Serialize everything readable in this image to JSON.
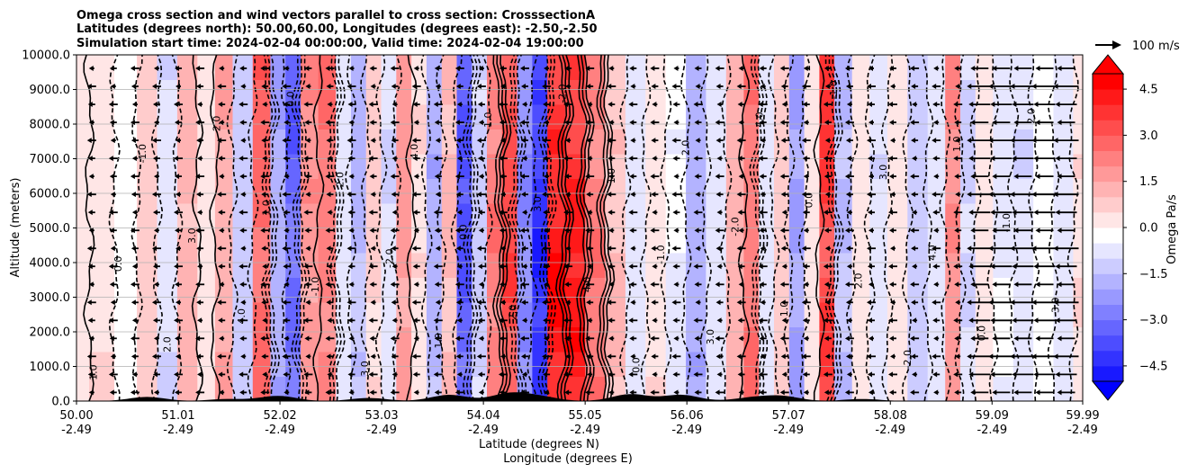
{
  "chart_data": {
    "type": "heatmap",
    "title_lines": [
      "Omega cross section and wind vectors parallel to cross section: CrosssectionA",
      "Latitudes (degrees north): 50.00,60.00, Longitudes (degrees east): -2.50,-2.50",
      "Simulation start time: 2024-02-04 00:00:00, Valid time: 2024-02-04 19:00:00"
    ],
    "ylabel": "Altitude (meters)",
    "xlabel_lat": "Latitude (degrees N)",
    "xlabel_lon": "Longitude (degrees E)",
    "ylim": [
      0,
      10000
    ],
    "y_ticks": [
      "0.0",
      "1000.0",
      "2000.0",
      "3000.0",
      "4000.0",
      "5000.0",
      "6000.0",
      "7000.0",
      "8000.0",
      "9000.0",
      "10000.0"
    ],
    "x_ticks": [
      {
        "lat": "50.00",
        "lon": "-2.49"
      },
      {
        "lat": "51.01",
        "lon": "-2.49"
      },
      {
        "lat": "52.02",
        "lon": "-2.49"
      },
      {
        "lat": "53.03",
        "lon": "-2.49"
      },
      {
        "lat": "54.04",
        "lon": "-2.49"
      },
      {
        "lat": "55.05",
        "lon": "-2.49"
      },
      {
        "lat": "56.06",
        "lon": "-2.49"
      },
      {
        "lat": "57.07",
        "lon": "-2.49"
      },
      {
        "lat": "58.08",
        "lon": "-2.49"
      },
      {
        "lat": "59.09",
        "lon": "-2.49"
      },
      {
        "lat": "59.99",
        "lon": "-2.49"
      }
    ],
    "xlim_lat": [
      50.0,
      59.99
    ],
    "grid": "horizontal",
    "colorbar": {
      "label": "Omega Pa/s",
      "min": -5.0,
      "max": 5.0,
      "ticks": [
        "4.5",
        "3.0",
        "1.5",
        "0.0",
        "−1.5",
        "−3.0",
        "−4.5"
      ],
      "tick_values": [
        4.5,
        3.0,
        1.5,
        0.0,
        -1.5,
        -3.0,
        -4.5
      ],
      "colors": {
        "negative": "#0000ff",
        "zero": "#ffffff",
        "positive": "#ff0000"
      }
    },
    "quiver_key": {
      "label": "100 m/s"
    },
    "omega_bands": [
      {
        "lat": 50.0,
        "omega": 0.5
      },
      {
        "lat": 50.25,
        "omega": 0.8
      },
      {
        "lat": 50.5,
        "omega": -0.2
      },
      {
        "lat": 50.7,
        "omega": 1.2
      },
      {
        "lat": 50.9,
        "omega": -0.8
      },
      {
        "lat": 51.1,
        "omega": 1.8
      },
      {
        "lat": 51.3,
        "omega": 0.4
      },
      {
        "lat": 51.45,
        "omega": 2.0
      },
      {
        "lat": 51.65,
        "omega": -1.2
      },
      {
        "lat": 51.85,
        "omega": 3.5
      },
      {
        "lat": 52.0,
        "omega": -2.0
      },
      {
        "lat": 52.15,
        "omega": -3.5
      },
      {
        "lat": 52.3,
        "omega": 2.5
      },
      {
        "lat": 52.5,
        "omega": 3.0
      },
      {
        "lat": 52.65,
        "omega": -0.5
      },
      {
        "lat": 52.8,
        "omega": -1.5
      },
      {
        "lat": 52.95,
        "omega": 1.0
      },
      {
        "lat": 53.1,
        "omega": -0.8
      },
      {
        "lat": 53.25,
        "omega": 2.2
      },
      {
        "lat": 53.4,
        "omega": 0.8
      },
      {
        "lat": 53.55,
        "omega": -1.8
      },
      {
        "lat": 53.7,
        "omega": 1.5
      },
      {
        "lat": 53.85,
        "omega": -3.8
      },
      {
        "lat": 54.0,
        "omega": -1.0
      },
      {
        "lat": 54.15,
        "omega": 2.8
      },
      {
        "lat": 54.3,
        "omega": 4.0
      },
      {
        "lat": 54.45,
        "omega": -2.5
      },
      {
        "lat": 54.6,
        "omega": -4.5
      },
      {
        "lat": 54.75,
        "omega": 5.0
      },
      {
        "lat": 54.95,
        "omega": 5.0
      },
      {
        "lat": 55.15,
        "omega": 3.0
      },
      {
        "lat": 55.35,
        "omega": 1.5
      },
      {
        "lat": 55.55,
        "omega": -0.5
      },
      {
        "lat": 55.75,
        "omega": 0.8
      },
      {
        "lat": 55.95,
        "omega": -0.3
      },
      {
        "lat": 56.15,
        "omega": -1.8
      },
      {
        "lat": 56.35,
        "omega": -0.6
      },
      {
        "lat": 56.55,
        "omega": 1.8
      },
      {
        "lat": 56.7,
        "omega": 3.2
      },
      {
        "lat": 56.85,
        "omega": -0.4
      },
      {
        "lat": 57.0,
        "omega": 1.2
      },
      {
        "lat": 57.15,
        "omega": -2.2
      },
      {
        "lat": 57.3,
        "omega": 0.5
      },
      {
        "lat": 57.45,
        "omega": 4.5
      },
      {
        "lat": 57.6,
        "omega": -1.5
      },
      {
        "lat": 57.8,
        "omega": 0.6
      },
      {
        "lat": 57.95,
        "omega": -0.8
      },
      {
        "lat": 58.15,
        "omega": 0.4
      },
      {
        "lat": 58.35,
        "omega": -1.2
      },
      {
        "lat": 58.55,
        "omega": -0.5
      },
      {
        "lat": 58.7,
        "omega": 2.5
      },
      {
        "lat": 58.85,
        "omega": -0.9
      },
      {
        "lat": 59.0,
        "omega": 0.6
      },
      {
        "lat": 59.2,
        "omega": -0.3
      },
      {
        "lat": 59.4,
        "omega": -0.8
      },
      {
        "lat": 59.6,
        "omega": 0.2
      },
      {
        "lat": 59.8,
        "omega": -0.4
      },
      {
        "lat": 59.99,
        "omega": 0.8
      }
    ],
    "contour_labels": [
      "1.0",
      "0.0",
      "-1.0",
      "2.0",
      "3.0",
      "-2.0",
      "4.0"
    ],
    "terrain_peaks_m": [
      {
        "lat": 50.7,
        "alt": 120
      },
      {
        "lat": 51.5,
        "alt": 60
      },
      {
        "lat": 52.0,
        "alt": 150
      },
      {
        "lat": 52.9,
        "alt": 90
      },
      {
        "lat": 53.7,
        "alt": 180
      },
      {
        "lat": 54.3,
        "alt": 220
      },
      {
        "lat": 54.6,
        "alt": 120
      },
      {
        "lat": 55.5,
        "alt": 200
      },
      {
        "lat": 56.0,
        "alt": 180
      },
      {
        "lat": 56.7,
        "alt": 90
      },
      {
        "lat": 57.0,
        "alt": 140
      },
      {
        "lat": 57.8,
        "alt": 60
      }
    ]
  }
}
